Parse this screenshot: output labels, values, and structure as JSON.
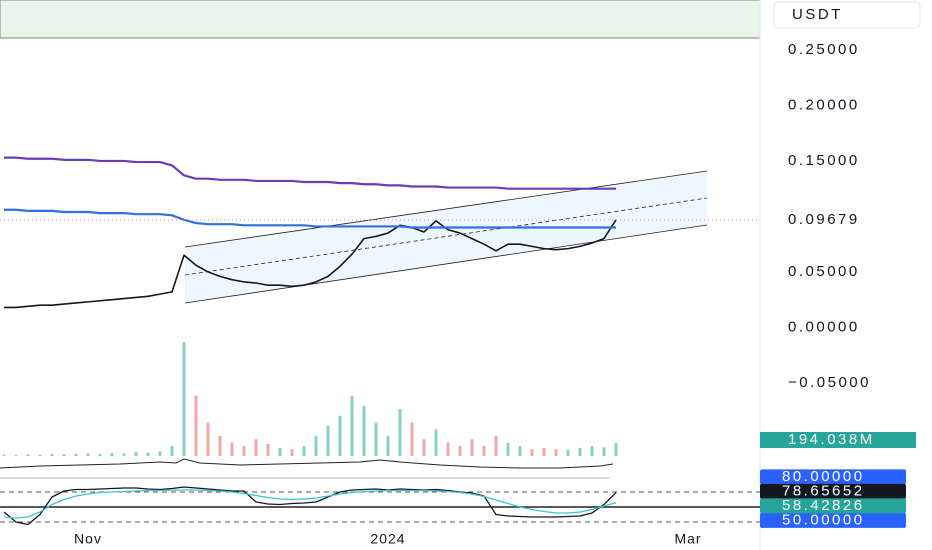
{
  "chart_data": {
    "type": "line",
    "currency": "USDT",
    "categories": [
      null,
      null,
      null,
      null,
      null,
      null,
      null,
      "Nov",
      null,
      null,
      null,
      null,
      null,
      null,
      null,
      null,
      null,
      null,
      null,
      null,
      null,
      null,
      null,
      null,
      null,
      null,
      null,
      null,
      null,
      null,
      null,
      null,
      "2024",
      null,
      null,
      null,
      null,
      null,
      null,
      null,
      null,
      null,
      null,
      null,
      null,
      null,
      null,
      null,
      null,
      null,
      null,
      null,
      null,
      null,
      null,
      null,
      null,
      "Mar",
      null,
      null
    ],
    "ylim": [
      -0.115,
      0.259
    ],
    "yticks": [
      {
        "value": 0.25,
        "label": "0.25000"
      },
      {
        "value": 0.2,
        "label": "0.20000"
      },
      {
        "value": 0.15,
        "label": "0.15000"
      },
      {
        "value": 0.05,
        "label": "0.05000"
      },
      {
        "value": 0,
        "label": "0.00000"
      },
      {
        "value": -0.05,
        "label": "−0.05000"
      }
    ],
    "last_line_color": "#f08080",
    "series": [
      {
        "color": "#131722",
        "values": [
          0.018,
          0.018,
          0.019,
          0.02,
          0.02,
          0.021,
          0.022,
          0.023,
          0.024,
          0.025,
          0.026,
          0.027,
          0.028,
          0.03,
          0.032,
          0.065,
          0.056,
          0.05,
          0.046,
          0.043,
          0.041,
          0.04,
          0.038,
          0.038,
          0.037,
          0.038,
          0.041,
          0.046,
          0.055,
          0.066,
          0.08,
          0.082,
          0.085,
          0.092,
          0.09,
          0.086,
          0.096,
          0.088,
          0.085,
          0.08,
          0.075,
          0.069,
          0.075,
          0.075,
          0.073,
          0.071,
          0.07,
          0.071,
          0.073,
          0.076,
          0.08,
          0.09679,
          null,
          null,
          null,
          null,
          null,
          null,
          null,
          null
        ]
      },
      {
        "color": "#6a3db8",
        "values": [
          0.153,
          0.153,
          0.152,
          0.152,
          0.152,
          0.151,
          0.151,
          0.151,
          0.15,
          0.15,
          0.15,
          0.149,
          0.149,
          0.149,
          0.146,
          0.137,
          0.134,
          0.134,
          0.133,
          0.133,
          0.133,
          0.132,
          0.132,
          0.132,
          0.132,
          0.131,
          0.131,
          0.131,
          0.13,
          0.13,
          0.129,
          0.129,
          0.128,
          0.128,
          0.127,
          0.127,
          0.127,
          0.126,
          0.126,
          0.126,
          0.126,
          0.126,
          0.125,
          0.125,
          0.125,
          0.125,
          0.125,
          0.125,
          0.125,
          0.125,
          0.125,
          0.125,
          null,
          null,
          null,
          null,
          null,
          null,
          null,
          null
        ]
      },
      {
        "color": "#2f6fe0",
        "values": [
          0.106,
          0.106,
          0.105,
          0.105,
          0.105,
          0.104,
          0.104,
          0.104,
          0.103,
          0.103,
          0.103,
          0.102,
          0.102,
          0.102,
          0.101,
          0.097,
          0.094,
          0.093,
          0.093,
          0.093,
          0.092,
          0.092,
          0.092,
          0.092,
          0.092,
          0.092,
          0.091,
          0.091,
          0.091,
          0.091,
          0.091,
          0.091,
          0.091,
          0.091,
          0.09,
          0.09,
          0.09,
          0.09,
          0.09,
          0.09,
          0.09,
          0.09,
          0.09,
          0.09,
          0.09,
          0.09,
          0.09,
          0.09,
          0.09,
          0.09,
          0.09,
          0.09,
          null,
          null,
          null,
          null,
          null,
          null,
          null,
          null
        ]
      }
    ],
    "volume": {
      "up_color": "#8ad1c4",
      "down_color": "#f4a6a6",
      "label_color": "#26a69a",
      "values": [
        20,
        15,
        25,
        20,
        30,
        25,
        35,
        40,
        30,
        45,
        40,
        60,
        50,
        70,
        150,
        1700,
        900,
        500,
        300,
        200,
        150,
        250,
        180,
        120,
        100,
        150,
        300,
        450,
        600,
        900,
        750,
        500,
        300,
        700,
        500,
        250,
        400,
        200,
        150,
        250,
        150,
        300,
        200,
        150,
        100,
        120,
        100,
        90,
        120,
        150,
        130,
        194.038,
        null,
        null,
        null,
        null,
        null,
        null,
        null,
        null
      ],
      "value_labels": [
        null,
        null,
        null,
        null,
        null,
        null,
        null,
        null,
        null,
        null,
        null,
        null,
        null,
        null,
        null,
        null,
        null,
        null,
        null,
        null,
        null,
        null,
        null,
        null,
        null,
        null,
        null,
        null,
        null,
        null,
        null,
        null,
        null,
        null,
        null,
        null,
        null,
        null,
        null,
        null,
        null,
        null,
        null,
        null,
        null,
        null,
        null,
        null,
        null,
        null,
        null,
        "194.038M",
        null,
        null,
        null,
        null,
        null,
        null,
        null,
        null
      ]
    },
    "oscillator": {
      "ylim": [
        0,
        100
      ],
      "level_color": "#2962ff",
      "levels": [
        {
          "value": 80,
          "label": "80.00000",
          "dash": true
        },
        {
          "value": 50,
          "label": "50.00000",
          "dash": false
        },
        {
          "value": 20,
          "dash": true
        }
      ],
      "series": [
        {
          "color": "#131722",
          "label_color": "#131722",
          "values": [
            40,
            20,
            15,
            35,
            70,
            82,
            85,
            85,
            86,
            87,
            88,
            88,
            86,
            85,
            87,
            90,
            88,
            86,
            84,
            82,
            82,
            60,
            56,
            55,
            57,
            58,
            60,
            70,
            80,
            84,
            85,
            86,
            84,
            86,
            85,
            84,
            85,
            83,
            80,
            78,
            72,
            35,
            32,
            31,
            30,
            30,
            30,
            31,
            32,
            38,
            55,
            78.65652,
            null,
            null,
            null,
            null,
            null,
            null,
            null,
            null
          ]
        },
        {
          "color": "#3cc4d4",
          "label_color": "#26a69a",
          "values": [
            30,
            28,
            30,
            40,
            55,
            65,
            72,
            76,
            79,
            80,
            81,
            82,
            83,
            83,
            84,
            84,
            84,
            83,
            82,
            80,
            77,
            73,
            69,
            66,
            65,
            66,
            68,
            72,
            76,
            79,
            81,
            82,
            83,
            83,
            83,
            83,
            82,
            81,
            79,
            76,
            71,
            64,
            57,
            50,
            45,
            41,
            38,
            38,
            40,
            45,
            52,
            58.42826,
            null,
            null,
            null,
            null,
            null,
            null,
            null,
            null
          ]
        }
      ]
    }
  }
}
